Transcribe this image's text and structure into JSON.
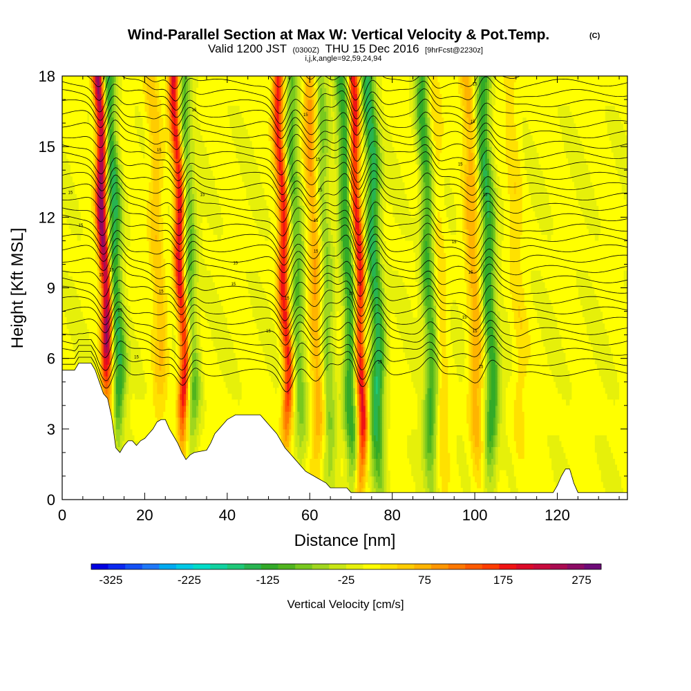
{
  "chart_data": {
    "type": "heatmap",
    "title": "Wind-Parallel Section at Max W: Vertical Velocity & Pot.Temp.",
    "title_mark": "(C)",
    "subtitle": {
      "valid": "Valid 1200 JST",
      "utc": "(0300Z)",
      "date": "THU 15 Dec 2016",
      "forecast": "[9hrFcst@2230z]",
      "indices": "i,j,k,angle=92,59,24,94"
    },
    "xlabel": "Distance [nm]",
    "ylabel": "Height [Kft MSL]",
    "xlim": [
      0,
      137
    ],
    "ylim": [
      0,
      18
    ],
    "xticks": [
      0,
      20,
      40,
      60,
      80,
      100,
      120
    ],
    "yticks": [
      0,
      3,
      6,
      9,
      12,
      15,
      18
    ],
    "grid": false,
    "colorbar": {
      "label": "Vertical Velocity [cm/s]",
      "range": [
        -350,
        300
      ],
      "ticks": [
        -325,
        -225,
        -125,
        -25,
        75,
        175,
        275
      ],
      "colors": [
        "#0000e0",
        "#0a28f0",
        "#1450f5",
        "#1e78f8",
        "#00aaf0",
        "#00c8e6",
        "#00dcc8",
        "#10d2a0",
        "#1ec878",
        "#28b450",
        "#32aa28",
        "#50b41e",
        "#78c81e",
        "#a0d61e",
        "#c8e614",
        "#e6f00a",
        "#ffff00",
        "#ffe100",
        "#ffcc00",
        "#ffb400",
        "#ff9600",
        "#ff7800",
        "#ff5a00",
        "#ff3c00",
        "#f01414",
        "#dc0a28",
        "#c80a3c",
        "#aa0a50",
        "#8c0a64",
        "#6e0a78"
      ]
    },
    "updrafts": [
      {
        "x": 11,
        "w": 280
      },
      {
        "x": 24,
        "w": 60
      },
      {
        "x": 29.5,
        "w": 210
      },
      {
        "x": 54.5,
        "w": 180
      },
      {
        "x": 62,
        "w": 90
      },
      {
        "x": 72.5,
        "w": 200
      },
      {
        "x": 92,
        "w": 40
      },
      {
        "x": 100.5,
        "w": 75
      },
      {
        "x": 111,
        "w": 30
      }
    ],
    "downdrafts": [
      {
        "x": 13.5,
        "w": -140
      },
      {
        "x": 31.5,
        "w": -100
      },
      {
        "x": 57.5,
        "w": -90
      },
      {
        "x": 64.5,
        "w": -80
      },
      {
        "x": 70,
        "w": -130
      },
      {
        "x": 76.5,
        "w": -150
      },
      {
        "x": 89.5,
        "w": -120
      },
      {
        "x": 104,
        "w": -130
      }
    ],
    "terrain": {
      "x": [
        0,
        3,
        4,
        7,
        8,
        9,
        10,
        11,
        12,
        13,
        14,
        15,
        16,
        17,
        18,
        19,
        20,
        21,
        22,
        23,
        24,
        25,
        26,
        27,
        28,
        29,
        30,
        31,
        32,
        35,
        36,
        37,
        38,
        39,
        40,
        41,
        42,
        43,
        44,
        45,
        48,
        49,
        50,
        51,
        52,
        53,
        54,
        55,
        56,
        57,
        58,
        59,
        60,
        61,
        62,
        63,
        64,
        65,
        66,
        67,
        69,
        70,
        71,
        80,
        90,
        100,
        118,
        119,
        120,
        121,
        122,
        123,
        124,
        125,
        126,
        127,
        130,
        137
      ],
      "height_kft": [
        5.5,
        5.5,
        5.8,
        5.8,
        5.5,
        5.0,
        4.5,
        4.3,
        3.5,
        2.2,
        2.0,
        2.3,
        2.5,
        2.5,
        2.3,
        2.5,
        2.6,
        2.8,
        3.0,
        3.3,
        3.4,
        3.4,
        3.0,
        2.7,
        2.4,
        2.0,
        1.7,
        1.9,
        2.0,
        2.1,
        2.4,
        2.8,
        3.0,
        3.2,
        3.4,
        3.5,
        3.6,
        3.6,
        3.6,
        3.6,
        3.6,
        3.4,
        3.2,
        3.0,
        2.8,
        2.5,
        2.2,
        2.0,
        1.8,
        1.6,
        1.4,
        1.2,
        1.1,
        1.0,
        0.9,
        0.8,
        0.7,
        0.5,
        0.5,
        0.5,
        0.5,
        0.3,
        0.3,
        0.3,
        0.3,
        0.3,
        0.3,
        0.3,
        0.6,
        1.0,
        1.3,
        1.3,
        0.7,
        0.3,
        0.3,
        0.3,
        0.3,
        0.3
      ]
    },
    "isentrope_labels": [
      {
        "x": 2,
        "y": 13.0,
        "text": "15"
      },
      {
        "x": 4.5,
        "y": 11.6,
        "text": "15"
      },
      {
        "x": 9.5,
        "y": 9.5,
        "text": "15"
      },
      {
        "x": 12,
        "y": 9.7,
        "text": "15"
      },
      {
        "x": 14,
        "y": 8.0,
        "text": "15"
      },
      {
        "x": 18,
        "y": 6.0,
        "text": "15"
      },
      {
        "x": 23.5,
        "y": 14.8,
        "text": "15"
      },
      {
        "x": 24,
        "y": 8.8,
        "text": "15"
      },
      {
        "x": 28.5,
        "y": 12.2,
        "text": "15"
      },
      {
        "x": 32,
        "y": 16.5,
        "text": "15"
      },
      {
        "x": 34,
        "y": 12.9,
        "text": "15"
      },
      {
        "x": 42,
        "y": 10.0,
        "text": "15"
      },
      {
        "x": 41.5,
        "y": 9.1,
        "text": "15"
      },
      {
        "x": 50,
        "y": 7.1,
        "text": "15"
      },
      {
        "x": 54.5,
        "y": 8.5,
        "text": "15"
      },
      {
        "x": 59,
        "y": 16.3,
        "text": "15"
      },
      {
        "x": 62,
        "y": 14.4,
        "text": "15"
      },
      {
        "x": 62.5,
        "y": 13.1,
        "text": "15"
      },
      {
        "x": 61.5,
        "y": 11.8,
        "text": "15"
      },
      {
        "x": 61.5,
        "y": 10.5,
        "text": "15"
      },
      {
        "x": 70,
        "y": 8.7,
        "text": "15"
      },
      {
        "x": 72,
        "y": 9.1,
        "text": "15"
      },
      {
        "x": 77,
        "y": 5.8,
        "text": "15"
      },
      {
        "x": 100,
        "y": 17.6,
        "text": "15"
      },
      {
        "x": 99.5,
        "y": 16.0,
        "text": "15"
      },
      {
        "x": 96.5,
        "y": 14.2,
        "text": "15"
      },
      {
        "x": 102.5,
        "y": 12.9,
        "text": "15"
      },
      {
        "x": 95,
        "y": 10.9,
        "text": "15"
      },
      {
        "x": 99,
        "y": 9.6,
        "text": "15"
      },
      {
        "x": 97.5,
        "y": 7.7,
        "text": "15"
      },
      {
        "x": 100,
        "y": 7.1,
        "text": "15"
      },
      {
        "x": 101.5,
        "y": 5.6,
        "text": "15"
      }
    ]
  }
}
